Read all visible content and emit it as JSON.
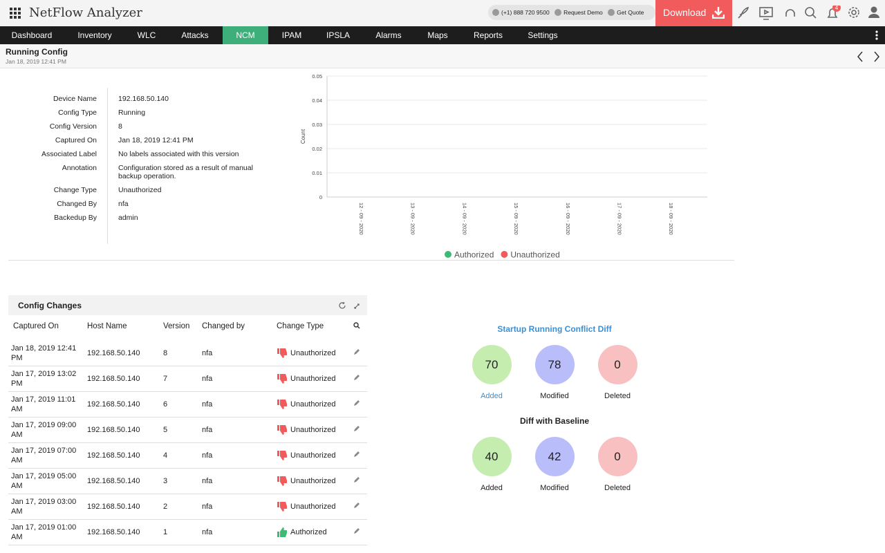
{
  "header": {
    "app_title": "NetFlow Analyzer",
    "phone": "(+1) 888 720 9500",
    "request_demo": "Request Demo",
    "get_quote": "Get Quote",
    "download": "Download",
    "notification_count": 4
  },
  "nav": {
    "items": [
      "Dashboard",
      "Inventory",
      "WLC",
      "Attacks",
      "NCM",
      "IPAM",
      "IPSLA",
      "Alarms",
      "Maps",
      "Reports",
      "Settings"
    ],
    "active": 4
  },
  "page": {
    "title": "Running Config",
    "date": "Jan 18, 2019 12:41 PM"
  },
  "details": [
    {
      "label": "Device Name",
      "value": "192.168.50.140"
    },
    {
      "label": "Config Type",
      "value": "Running"
    },
    {
      "label": "Config Version",
      "value": "8"
    },
    {
      "label": "Captured On",
      "value": "Jan 18, 2019 12:41 PM"
    },
    {
      "label": "Associated Label",
      "value": "No labels associated with this version"
    },
    {
      "label": "Annotation",
      "value": "Configuration stored as a result of manual backup operation."
    },
    {
      "label": "Change Type",
      "value": "Unauthorized"
    },
    {
      "label": "Changed By",
      "value": "nfa"
    },
    {
      "label": "Backedup By",
      "value": "admin"
    }
  ],
  "chart_data": {
    "type": "line",
    "y_label": "Count",
    "categories": [
      "12 - 09 - 2020",
      "13 - 09 - 2020",
      "14 - 09 - 2020",
      "15 - 09 - 2020",
      "16 - 09 - 2020",
      "17 - 09 - 2020",
      "18 - 09 - 2020"
    ],
    "series": [
      {
        "name": "Authorized",
        "color": "#3dbb75",
        "values": [
          null,
          null,
          null,
          null,
          null,
          null,
          null
        ]
      },
      {
        "name": "Unauthorized",
        "color": "#f25b5b",
        "values": [
          null,
          null,
          null,
          null,
          null,
          null,
          null
        ]
      }
    ],
    "ylim": [
      0,
      0.05
    ],
    "yticks": [
      0,
      0.01,
      0.02,
      0.03,
      0.04,
      0.05
    ],
    "grid": true
  },
  "config_changes": {
    "title": "Config Changes",
    "columns": [
      "Captured On",
      "Host Name",
      "Version",
      "Changed by",
      "Change Type"
    ],
    "rows": [
      [
        "Jan 18, 2019 12:41 PM",
        "192.168.50.140",
        "8",
        "nfa",
        "Unauthorized"
      ],
      [
        "Jan 17, 2019 13:02 PM",
        "192.168.50.140",
        "7",
        "nfa",
        "Unauthorized"
      ],
      [
        "Jan 17, 2019 11:01 AM",
        "192.168.50.140",
        "6",
        "nfa",
        "Unauthorized"
      ],
      [
        "Jan 17, 2019 09:00 AM",
        "192.168.50.140",
        "5",
        "nfa",
        "Unauthorized"
      ],
      [
        "Jan 17, 2019 07:00 AM",
        "192.168.50.140",
        "4",
        "nfa",
        "Unauthorized"
      ],
      [
        "Jan 17, 2019 05:00 AM",
        "192.168.50.140",
        "3",
        "nfa",
        "Unauthorized"
      ],
      [
        "Jan 17, 2019 03:00 AM",
        "192.168.50.140",
        "2",
        "nfa",
        "Unauthorized"
      ],
      [
        "Jan 17, 2019 01:00 AM",
        "192.168.50.140",
        "1",
        "nfa",
        "Authorized"
      ]
    ]
  },
  "diffs": [
    {
      "title": "Startup Running Conflict Diff",
      "items": [
        {
          "value": 70,
          "label": "Added",
          "color": "#c6edb0",
          "link": true
        },
        {
          "value": 78,
          "label": "Modified",
          "color": "#b9bdfa"
        },
        {
          "value": 0,
          "label": "Deleted",
          "color": "#f8c0c0"
        }
      ]
    },
    {
      "title": "Diff with Baseline",
      "items": [
        {
          "value": 40,
          "label": "Added",
          "color": "#c6edb0"
        },
        {
          "value": 42,
          "label": "Modified",
          "color": "#b9bdfa"
        },
        {
          "value": 0,
          "label": "Deleted",
          "color": "#f8c0c0"
        }
      ]
    }
  ]
}
